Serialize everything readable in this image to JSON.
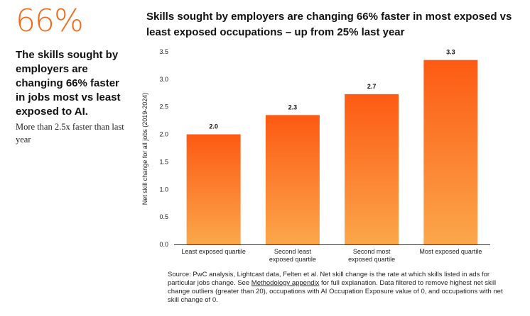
{
  "left_panel": {
    "big_stat": "66%",
    "headline": "The skills sought by employers are changing 66% faster in jobs most vs least exposed to AI.",
    "subtext": "More than 2.5x faster than last year"
  },
  "chart_data": {
    "type": "bar",
    "title": "Skills sought by employers are changing 66% faster in most exposed vs least exposed occupations – up from 25% last year",
    "ylabel": "Net skill change for all jobs (2019-2024)",
    "xlabel": "",
    "ylim": [
      0,
      3.5
    ],
    "yticks": [
      "0.0",
      "0.5",
      "1.0",
      "1.5",
      "2.0",
      "2.5",
      "3.0",
      "3.5"
    ],
    "categories": [
      [
        "Least exposed quartile"
      ],
      [
        "Second least",
        "exposed quartile"
      ],
      [
        "Second most",
        "exposed quartile"
      ],
      [
        "Most exposed quartile"
      ]
    ],
    "values": [
      2.0,
      2.35,
      2.73,
      3.35
    ],
    "value_labels": [
      "2.0",
      "2.3",
      "2.7",
      "3.3"
    ],
    "colors": {
      "bar_top": "#fd5a13",
      "bar_bottom": "#fba74b",
      "axis": "#333333"
    }
  },
  "source": {
    "prefix": "Source: PwC analysis, Lightcast data, Felten et al. Net skill change is the rate at which skills listed in ads for particular jobs change. See ",
    "link": "Methodology appendix",
    "suffix": " for full explanation. Data filtered to remove highest net skill change outliers (greater than 20), occupations with AI Occupation Exposure value of 0, and occupations with net skill change of 0."
  }
}
